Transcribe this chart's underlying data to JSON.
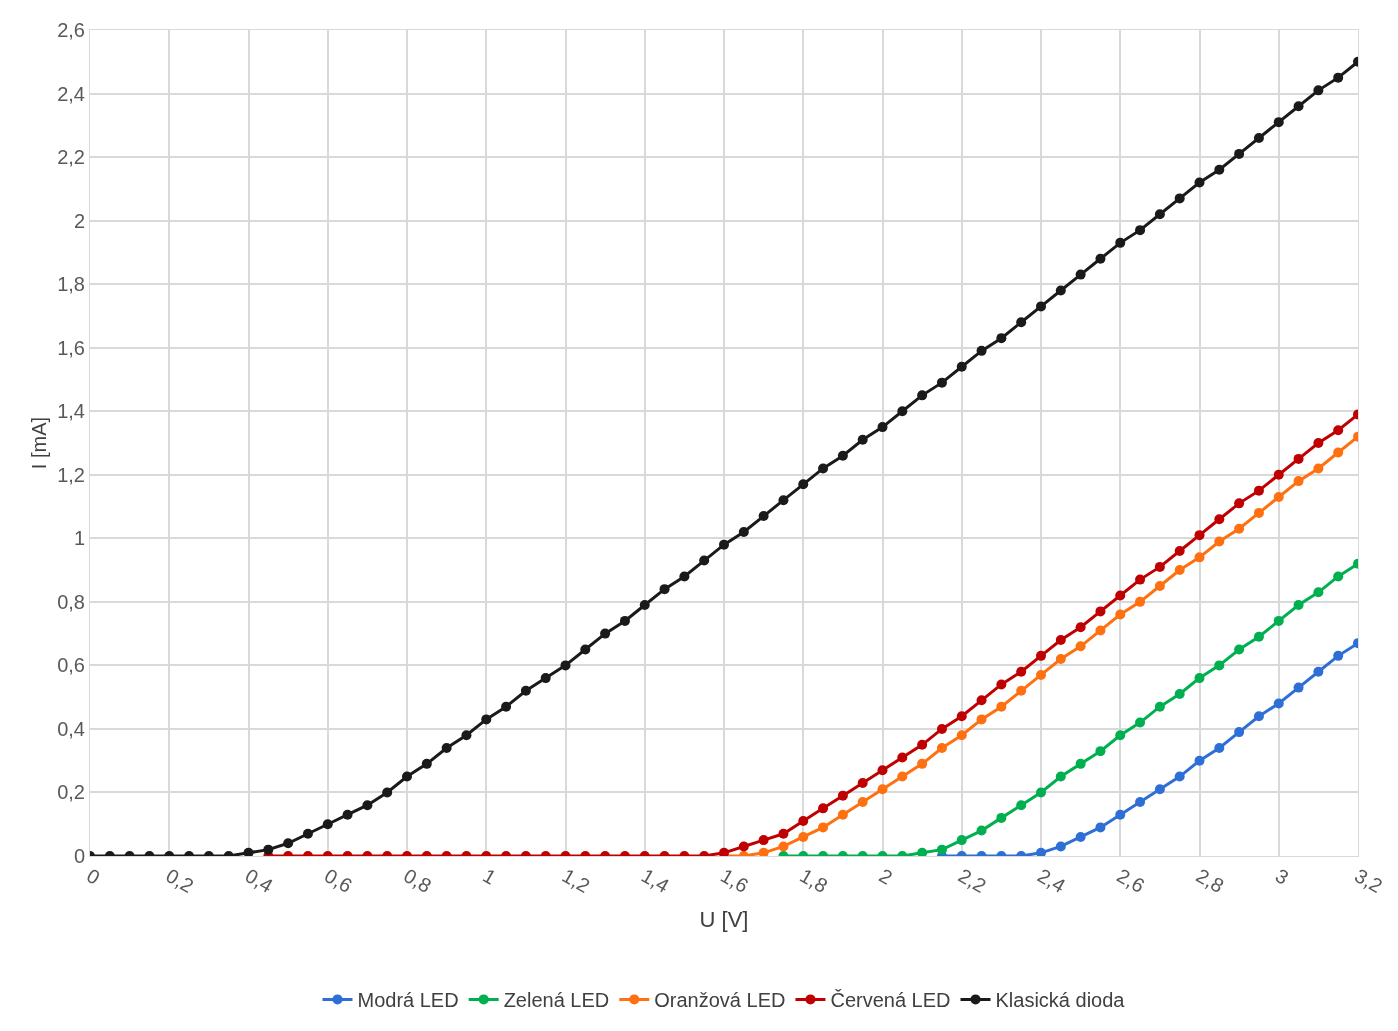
{
  "chart_data": {
    "type": "line",
    "xlabel": "U [V]",
    "ylabel": "I [mA]",
    "x": [
      0,
      0.05,
      0.1,
      0.15,
      0.2,
      0.25,
      0.3,
      0.35,
      0.4,
      0.45,
      0.5,
      0.55,
      0.6,
      0.65,
      0.7,
      0.75,
      0.8,
      0.85,
      0.9,
      0.95,
      1,
      1.05,
      1.1,
      1.15,
      1.2,
      1.25,
      1.3,
      1.35,
      1.4,
      1.45,
      1.5,
      1.55,
      1.6,
      1.65,
      1.7,
      1.75,
      1.8,
      1.85,
      1.9,
      1.95,
      2,
      2.05,
      2.1,
      2.15,
      2.2,
      2.25,
      2.3,
      2.35,
      2.4,
      2.45,
      2.5,
      2.55,
      2.6,
      2.65,
      2.7,
      2.75,
      2.8,
      2.85,
      2.9,
      2.95,
      3,
      3.05,
      3.1,
      3.15,
      3.2
    ],
    "series": [
      {
        "name": "Modrá LED",
        "color": "#2e6fd6",
        "values": [
          null,
          null,
          null,
          null,
          null,
          null,
          null,
          null,
          null,
          null,
          null,
          null,
          null,
          null,
          null,
          null,
          null,
          null,
          null,
          null,
          null,
          null,
          null,
          null,
          null,
          null,
          null,
          null,
          null,
          null,
          null,
          null,
          null,
          null,
          null,
          null,
          null,
          null,
          null,
          null,
          null,
          null,
          null,
          0,
          0,
          0,
          0,
          0,
          0.01,
          0.03,
          0.06,
          0.09,
          0.13,
          0.17,
          0.21,
          0.25,
          0.3,
          0.34,
          0.39,
          0.44,
          0.48,
          0.53,
          0.58,
          0.63,
          0.67
        ]
      },
      {
        "name": "Zelená LED",
        "color": "#00b050",
        "values": [
          null,
          null,
          null,
          null,
          null,
          null,
          null,
          null,
          null,
          null,
          null,
          null,
          null,
          null,
          null,
          null,
          null,
          null,
          null,
          null,
          null,
          null,
          null,
          null,
          null,
          null,
          null,
          null,
          null,
          null,
          null,
          null,
          null,
          null,
          null,
          0,
          0,
          0,
          0,
          0,
          0,
          0,
          0.01,
          0.02,
          0.05,
          0.08,
          0.12,
          0.16,
          0.2,
          0.25,
          0.29,
          0.33,
          0.38,
          0.42,
          0.47,
          0.51,
          0.56,
          0.6,
          0.65,
          0.69,
          0.74,
          0.79,
          0.83,
          0.88,
          0.92
        ]
      },
      {
        "name": "Oranžová LED",
        "color": "#ff7010",
        "values": [
          null,
          null,
          null,
          null,
          null,
          null,
          null,
          null,
          null,
          null,
          null,
          null,
          null,
          null,
          null,
          null,
          null,
          null,
          null,
          null,
          null,
          null,
          null,
          null,
          null,
          null,
          null,
          null,
          null,
          null,
          null,
          null,
          0,
          0,
          0.01,
          0.03,
          0.06,
          0.09,
          0.13,
          0.17,
          0.21,
          0.25,
          0.29,
          0.34,
          0.38,
          0.43,
          0.47,
          0.52,
          0.57,
          0.62,
          0.66,
          0.71,
          0.76,
          0.8,
          0.85,
          0.9,
          0.94,
          0.99,
          1.03,
          1.08,
          1.13,
          1.18,
          1.22,
          1.27,
          1.32
        ]
      },
      {
        "name": "Červená LED",
        "color": "#c00000",
        "values": [
          null,
          null,
          null,
          null,
          null,
          null,
          null,
          null,
          null,
          0,
          0,
          0,
          0,
          0,
          0,
          0,
          0,
          0,
          0,
          0,
          0,
          0,
          0,
          0,
          0,
          0,
          0,
          0,
          0,
          0,
          0,
          0,
          0.01,
          0.03,
          0.05,
          0.07,
          0.11,
          0.15,
          0.19,
          0.23,
          0.27,
          0.31,
          0.35,
          0.4,
          0.44,
          0.49,
          0.54,
          0.58,
          0.63,
          0.68,
          0.72,
          0.77,
          0.82,
          0.87,
          0.91,
          0.96,
          1.01,
          1.06,
          1.11,
          1.15,
          1.2,
          1.25,
          1.3,
          1.34,
          1.39
        ]
      },
      {
        "name": "Klasická dioda",
        "color": "#1a1a1a",
        "values": [
          0,
          0,
          0,
          0,
          0,
          0,
          0,
          0,
          0.01,
          0.02,
          0.04,
          0.07,
          0.1,
          0.13,
          0.16,
          0.2,
          0.25,
          0.29,
          0.34,
          0.38,
          0.43,
          0.47,
          0.52,
          0.56,
          0.6,
          0.65,
          0.7,
          0.74,
          0.79,
          0.84,
          0.88,
          0.93,
          0.98,
          1.02,
          1.07,
          1.12,
          1.17,
          1.22,
          1.26,
          1.31,
          1.35,
          1.4,
          1.45,
          1.49,
          1.54,
          1.59,
          1.63,
          1.68,
          1.73,
          1.78,
          1.83,
          1.88,
          1.93,
          1.97,
          2.02,
          2.07,
          2.12,
          2.16,
          2.21,
          2.26,
          2.31,
          2.36,
          2.41,
          2.45,
          2.5
        ]
      }
    ],
    "xlim": [
      0,
      3.2
    ],
    "xticks": [
      0,
      {
        "value": 0.2,
        "label": "0,2"
      },
      {
        "value": 0.4,
        "label": "0,4"
      },
      {
        "value": 0.6,
        "label": "0,6"
      },
      {
        "value": 0.8,
        "label": "0,8"
      },
      1,
      {
        "value": 1.2,
        "label": "1,2"
      },
      {
        "value": 1.4,
        "label": "1,4"
      },
      {
        "value": 1.6,
        "label": "1,6"
      },
      {
        "value": 1.8,
        "label": "1,8"
      },
      2,
      {
        "value": 2.2,
        "label": "2,2"
      },
      {
        "value": 2.4,
        "label": "2,4"
      },
      {
        "value": 2.6,
        "label": "2,6"
      },
      {
        "value": 2.8,
        "label": "2,8"
      },
      3,
      {
        "value": 3.2,
        "label": "3,2"
      }
    ],
    "ylim": [
      0,
      2.6
    ],
    "yticks": [
      0,
      {
        "value": 0.2,
        "label": "0,2"
      },
      {
        "value": 0.4,
        "label": "0,4"
      },
      {
        "value": 0.6,
        "label": "0,6"
      },
      {
        "value": 0.8,
        "label": "0,8"
      },
      1,
      {
        "value": 1.2,
        "label": "1,2"
      },
      {
        "value": 1.4,
        "label": "1,4"
      },
      {
        "value": 1.6,
        "label": "1,6"
      },
      {
        "value": 1.8,
        "label": "1,8"
      },
      2,
      {
        "value": 2.2,
        "label": "2,2"
      },
      {
        "value": 2.4,
        "label": "2,4"
      },
      {
        "value": 2.6,
        "label": "2,6"
      }
    ],
    "grid": true,
    "legend": "bottom",
    "marker": "circle",
    "line_style": "solid"
  }
}
